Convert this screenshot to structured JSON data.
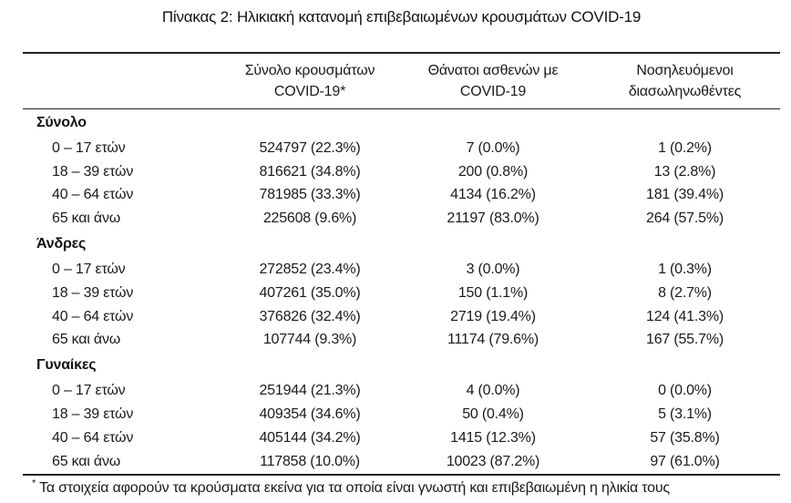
{
  "title": "Πίνακας 2: Ηλικιακή κατανομή επιβεβαιωμένων κρουσμάτων COVID-19",
  "colors": {
    "text": "#1a1a1a",
    "rule": "#222222",
    "background": "#ffffff"
  },
  "table": {
    "columns": [
      {
        "line1": "Σύνολο κρουσμάτων",
        "line2": "COVID-19*"
      },
      {
        "line1": "Θάνατοι ασθενών με",
        "line2": "COVID-19"
      },
      {
        "line1": "Νοσηλευόμενοι",
        "line2": "διασωληνωθέντες"
      }
    ],
    "sections": [
      {
        "label": "Σύνολο",
        "rows": [
          {
            "age": "0 – 17 ετών",
            "cases": "524797 (22.3%)",
            "deaths": "7 (0.0%)",
            "intubated": "1 (0.2%)"
          },
          {
            "age": "18 – 39 ετών",
            "cases": "816621 (34.8%)",
            "deaths": "200 (0.8%)",
            "intubated": "13 (2.8%)"
          },
          {
            "age": "40 – 64 ετών",
            "cases": "781985 (33.3%)",
            "deaths": "4134 (16.2%)",
            "intubated": "181 (39.4%)"
          },
          {
            "age": "65 και άνω",
            "cases": "225608 (9.6%)",
            "deaths": "21197 (83.0%)",
            "intubated": "264 (57.5%)"
          }
        ]
      },
      {
        "label": "Άνδρες",
        "rows": [
          {
            "age": "0 – 17 ετών",
            "cases": "272852 (23.4%)",
            "deaths": "3 (0.0%)",
            "intubated": "1 (0.3%)"
          },
          {
            "age": "18 – 39 ετών",
            "cases": "407261 (35.0%)",
            "deaths": "150 (1.1%)",
            "intubated": "8 (2.7%)"
          },
          {
            "age": "40 – 64 ετών",
            "cases": "376826 (32.4%)",
            "deaths": "2719 (19.4%)",
            "intubated": "124 (41.3%)"
          },
          {
            "age": "65 και άνω",
            "cases": "107744 (9.3%)",
            "deaths": "11174 (79.6%)",
            "intubated": "167 (55.7%)"
          }
        ]
      },
      {
        "label": "Γυναίκες",
        "rows": [
          {
            "age": "0 – 17 ετών",
            "cases": "251944 (21.3%)",
            "deaths": "4 (0.0%)",
            "intubated": "0 (0.0%)"
          },
          {
            "age": "18 – 39 ετών",
            "cases": "409354 (34.6%)",
            "deaths": "50 (0.4%)",
            "intubated": "5 (3.1%)"
          },
          {
            "age": "40 – 64 ετών",
            "cases": "405144 (34.2%)",
            "deaths": "1415 (12.3%)",
            "intubated": "57 (35.8%)"
          },
          {
            "age": "65 και άνω",
            "cases": "117858 (10.0%)",
            "deaths": "10023 (87.2%)",
            "intubated": "97 (61.0%)"
          }
        ]
      }
    ],
    "footnote_marker": "*",
    "footnote": "Τα στοιχεία αφορούν τα κρούσματα εκείνα για τα οποία είναι γνωστή και επιβεβαιωμένη η ηλικία τους"
  }
}
